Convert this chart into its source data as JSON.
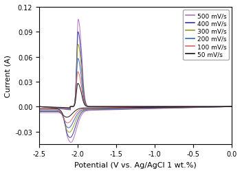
{
  "title": "",
  "xlabel": "Potential (V vs. Ag/AgCl 1 wt.%)",
  "ylabel": "Current (A)",
  "xlim": [
    -2.5,
    0.0
  ],
  "ylim": [
    -0.045,
    0.12
  ],
  "yticks": [
    -0.03,
    0.0,
    0.03,
    0.06,
    0.09,
    0.12
  ],
  "xticks": [
    -2.5,
    -2.0,
    -1.5,
    -1.0,
    -0.5,
    0.0
  ],
  "scan_rates": [
    500,
    400,
    300,
    200,
    100,
    50
  ],
  "colors": [
    "#b070c0",
    "#3535a0",
    "#9a9a20",
    "#3060d0",
    "#e06060",
    "#101010"
  ],
  "anodic_peak_potentials": [
    -1.995,
    -1.997,
    -1.998,
    -1.999,
    -2.0,
    -2.0
  ],
  "cathodic_peak_potentials": [
    -2.09,
    -2.1,
    -2.11,
    -2.12,
    -2.13,
    -2.14
  ],
  "anodic_peak_currents": [
    0.105,
    0.09,
    0.075,
    0.058,
    0.042,
    0.028
  ],
  "cathodic_peak_currents": [
    -0.038,
    -0.033,
    -0.027,
    -0.022,
    -0.017,
    -0.011
  ],
  "background_currents": [
    -0.012,
    -0.01,
    -0.009,
    -0.008,
    -0.006,
    -0.004
  ],
  "figsize": [
    3.52,
    2.53
  ],
  "dpi": 100
}
